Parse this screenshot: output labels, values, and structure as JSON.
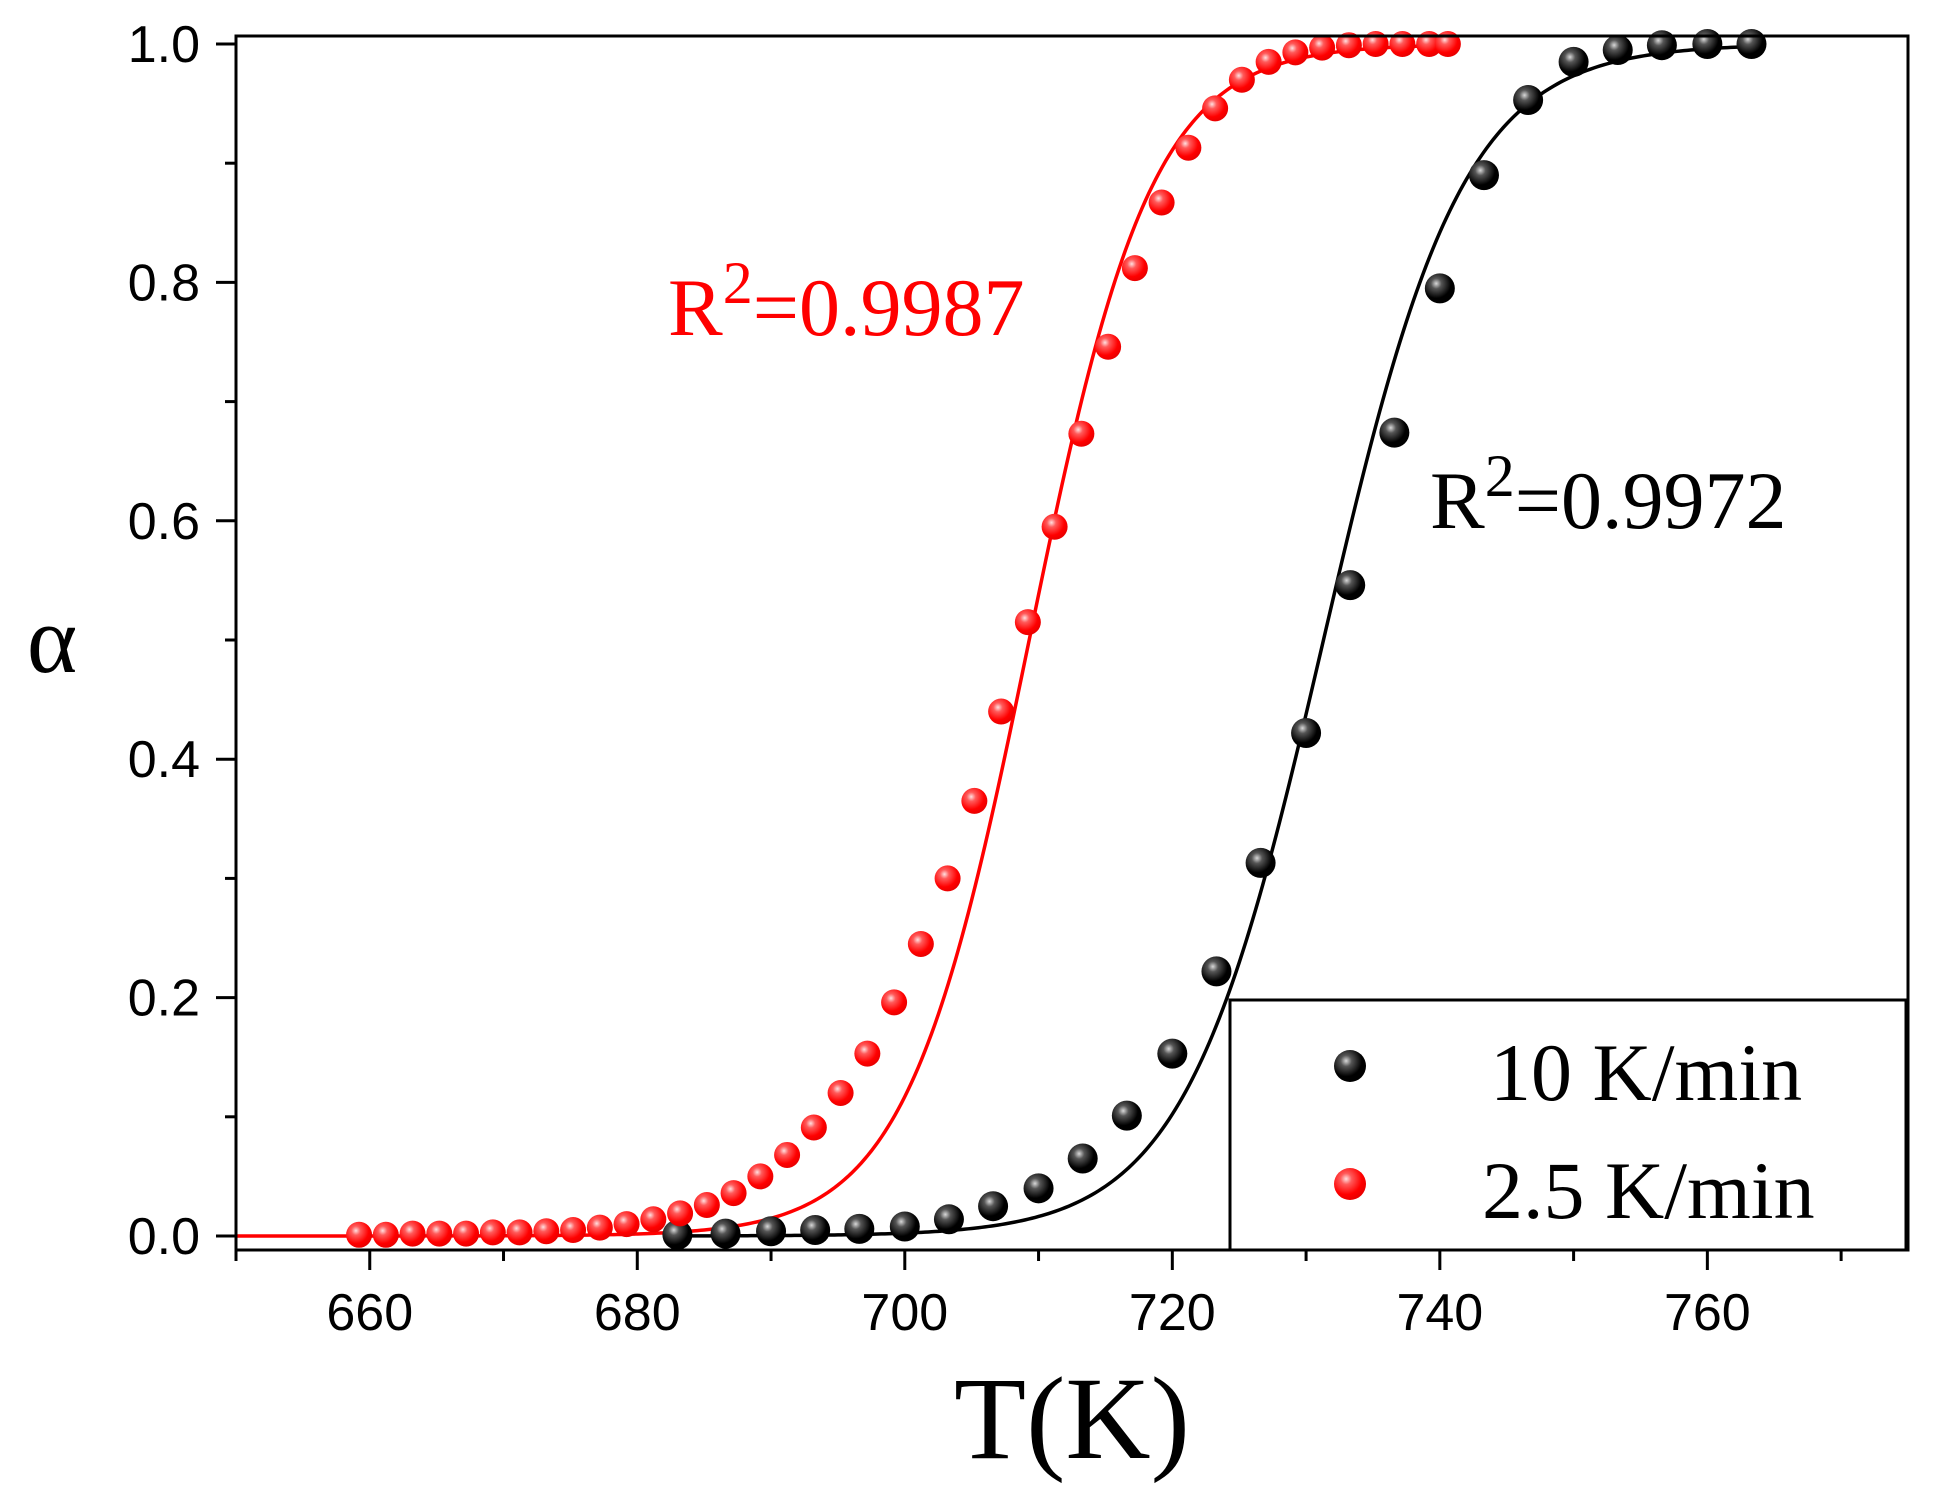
{
  "chart_data": {
    "type": "scatter",
    "xlabel": "T(K)",
    "ylabel": "α",
    "xlim": [
      650,
      775
    ],
    "ylim": [
      0,
      1.0
    ],
    "x_ticks": [
      "660",
      "680",
      "700",
      "720",
      "740",
      "760"
    ],
    "y_ticks": [
      "0.0",
      "0.2",
      "0.4",
      "0.6",
      "0.8",
      "1.0"
    ],
    "series": [
      {
        "name": "10 K/min",
        "color": "#000000",
        "x": [
          683,
          686.6,
          690,
          693.3,
          696.6,
          700,
          703.3,
          706.6,
          710,
          713.3,
          716.6,
          720,
          723.3,
          726.6,
          730,
          733.3,
          736.6,
          740,
          743.3,
          746.6,
          750,
          753.3,
          756.6,
          760,
          763.3
        ],
        "y": [
          0.001,
          0.002,
          0.004,
          0.005,
          0.006,
          0.008,
          0.014,
          0.025,
          0.04,
          0.065,
          0.101,
          0.153,
          0.222,
          0.313,
          0.422,
          0.546,
          0.674,
          0.795,
          0.89,
          0.953,
          0.985,
          0.995,
          0.999,
          1.0,
          1.0
        ],
        "fit": {
          "label": "R2=0.9972",
          "r2": "0.9972",
          "center": 731.3,
          "scale": 5.2
        }
      },
      {
        "name": "2.5 K/min",
        "color": "#ff0000",
        "x": [
          659.2,
          661.2,
          663.2,
          665.2,
          667.2,
          669.2,
          671.2,
          673.2,
          675.2,
          677.2,
          679.2,
          681.2,
          683.2,
          685.2,
          687.2,
          689.2,
          691.2,
          693.2,
          695.2,
          697.2,
          699.2,
          701.2,
          703.2,
          705.2,
          707.2,
          709.2,
          711.2,
          713.2,
          715.2,
          717.2,
          719.2,
          721.2,
          723.2,
          725.2,
          727.2,
          729.2,
          731.2,
          733.2,
          735.2,
          737.2,
          739.2,
          740.6
        ],
        "y": [
          0.001,
          0.001,
          0.002,
          0.002,
          0.002,
          0.003,
          0.003,
          0.004,
          0.005,
          0.007,
          0.01,
          0.014,
          0.019,
          0.026,
          0.036,
          0.05,
          0.068,
          0.091,
          0.12,
          0.153,
          0.196,
          0.245,
          0.3,
          0.365,
          0.44,
          0.515,
          0.595,
          0.673,
          0.746,
          0.812,
          0.867,
          0.913,
          0.946,
          0.97,
          0.985,
          0.993,
          0.997,
          0.999,
          1.0,
          1.0,
          1.0,
          1.0
        ],
        "fit": {
          "label": "R2=0.9987",
          "r2": "0.9987",
          "center": 709.3,
          "scale": 4.6
        }
      }
    ],
    "annotations": [
      {
        "series": 1,
        "prefix": "R",
        "sup": "2",
        "value": "=0.9987",
        "color": "#ff0000"
      },
      {
        "series": 0,
        "prefix": "R",
        "sup": "2",
        "value": "=0.9972",
        "color": "#000000"
      }
    ],
    "legend": {
      "position": "bottom-right",
      "entries": [
        {
          "label": "10 K/min",
          "color": "#000000"
        },
        {
          "label": "2.5 K/min",
          "color": "#ff0000"
        }
      ]
    }
  }
}
